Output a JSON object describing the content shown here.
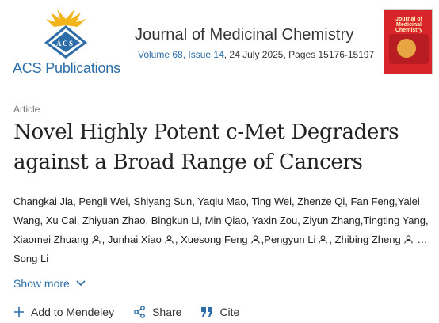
{
  "header": {
    "logo_text": "ACS Publications",
    "journal_title": "Journal of Medicinal Chemistry",
    "volume_issue": "Volume 68, Issue 14",
    "date_pages": ", 24 July 2025, Pages 15176-15197",
    "cover_title": "Journal of Medicinal Chemistry"
  },
  "article": {
    "type": "Article",
    "title": "Novel Highly Potent c-Met Degraders against a Broad Range of Cancers"
  },
  "authors": [
    {
      "name": "Changkai Jia",
      "sep": ", "
    },
    {
      "name": "Pengli Wei",
      "sep": ", "
    },
    {
      "name": "Shiyang Sun",
      "sep": ", "
    },
    {
      "name": "Yaqiu Mao",
      "sep": ", "
    },
    {
      "name": "Ting Wei",
      "sep": ", "
    },
    {
      "name": "Zhenze Qi",
      "sep": ", "
    },
    {
      "name": "Fan Feng",
      "sep": ","
    },
    {
      "name": "Yalei Wang",
      "sep": ", "
    },
    {
      "name": "Xu Cai",
      "sep": ", "
    },
    {
      "name": "Zhiyuan Zhao",
      "sep": ", "
    },
    {
      "name": "Bingkun Li",
      "sep": ", "
    },
    {
      "name": "Min Qiao",
      "sep": ", "
    },
    {
      "name": "Yaxin Zou",
      "sep": ", "
    },
    {
      "name": "Ziyun Zhang",
      "sep": ","
    },
    {
      "name": "Tingting Yang",
      "sep": ", "
    },
    {
      "name": "Xiaomei Zhuang",
      "sep": ", ",
      "icon": true
    },
    {
      "name": "Junhai Xiao",
      "sep": ", ",
      "icon": true
    },
    {
      "name": "Xuesong Feng",
      "sep": ",",
      "icon": true
    },
    {
      "name": "Pengyun Li",
      "sep": ", ",
      "icon": true
    },
    {
      "name": "Zhibing Zheng",
      "sep": " …",
      "icon": true
    },
    {
      "name": "Song Li",
      "sep": ""
    }
  ],
  "show_more": "Show more",
  "actions": {
    "mendeley": "Add to Mendeley",
    "share": "Share",
    "cite": "Cite"
  },
  "colors": {
    "brand_blue": "#2d6da8",
    "logo_gold": "#f2b418"
  }
}
